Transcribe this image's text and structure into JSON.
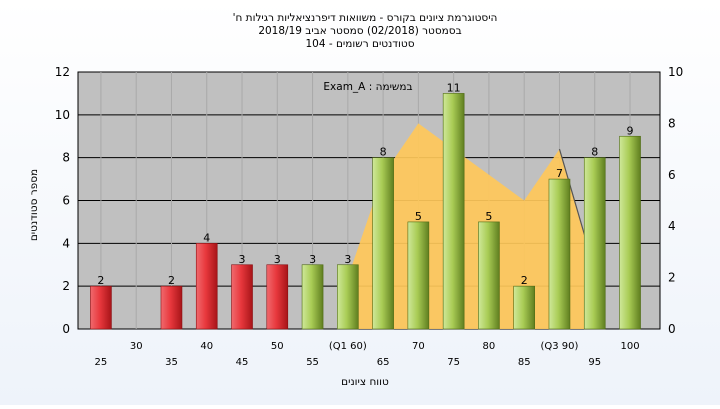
{
  "chart_data": {
    "type": "bar",
    "title_lines": [
      "היסטוגרמת ציונים בקורס - משוואות דיפרנציאליות רגילות ח'",
      "בסמסטר (02/2018) סמסטר אביב 2018/19",
      "סטודנטים רשומים - 104"
    ],
    "annotation": "במשימה : Exam_A",
    "xlabel": "טווח ציונים",
    "ylabel": "מספר סטודנטים",
    "ylim": [
      0,
      12
    ],
    "y2lim": [
      0,
      10
    ],
    "y_ticks": [
      0,
      2,
      4,
      6,
      8,
      10,
      12
    ],
    "y2_ticks": [
      0,
      2,
      4,
      6,
      8,
      10
    ],
    "grid": true,
    "categories": [
      "25",
      "30",
      "35",
      "40",
      "45",
      "50",
      "55",
      "(Q1 60)",
      "65",
      "70",
      "75",
      "80",
      "85",
      "(Q3 90)",
      "95",
      "100"
    ],
    "values": [
      2,
      0,
      2,
      4,
      3,
      3,
      3,
      3,
      8,
      5,
      11,
      5,
      2,
      7,
      8,
      9
    ],
    "bar_colors": [
      "red",
      "red",
      "red",
      "red",
      "red",
      "red",
      "green",
      "green",
      "green",
      "green",
      "green",
      "green",
      "green",
      "green",
      "green",
      "green"
    ],
    "area_series": {
      "secondary_axis": true,
      "points": [
        {
          "x": "(Q1 60)",
          "y": 2.0
        },
        {
          "x": "65",
          "y": 6.0
        },
        {
          "x": "70",
          "y": 8.0
        },
        {
          "x": "85",
          "y": 5.0
        },
        {
          "x": "(Q3 90)",
          "y": 7.0
        },
        {
          "x": "95",
          "y": 2.3
        }
      ]
    },
    "colors": {
      "plot_bg": "#c0c0c0",
      "red_bar": "#e8383d",
      "green_bar": "#a9cc55",
      "area": "#ffc85a",
      "grid": "#000000"
    }
  }
}
